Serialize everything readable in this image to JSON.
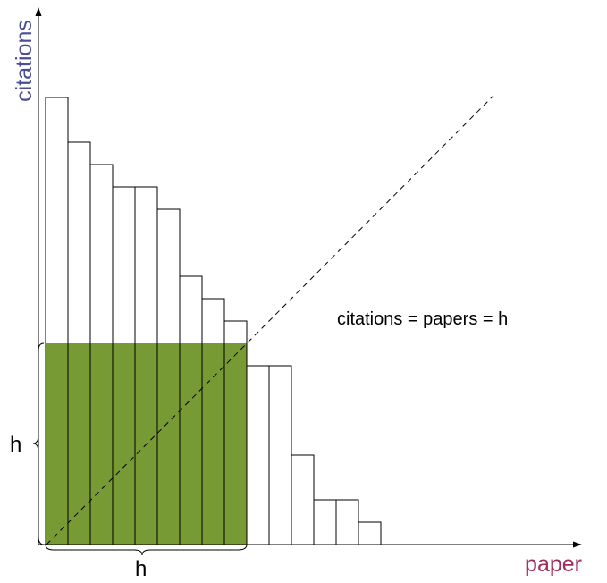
{
  "chart_data": {
    "type": "bar",
    "title": "",
    "xlabel": "paper",
    "ylabel": "citations",
    "values": [
      20,
      18,
      17,
      16,
      16,
      15,
      12,
      11,
      10,
      8,
      8,
      4,
      2,
      2,
      1
    ],
    "h": 9,
    "annotation": "citations = papers = h",
    "h_brace_x_label": "h",
    "h_brace_y_label": "h",
    "colors": {
      "h_core_fill": "#779a35",
      "ylabel": "#4b4d9a",
      "xlabel": "#a02d5f",
      "bar_stroke": "#000000"
    }
  }
}
